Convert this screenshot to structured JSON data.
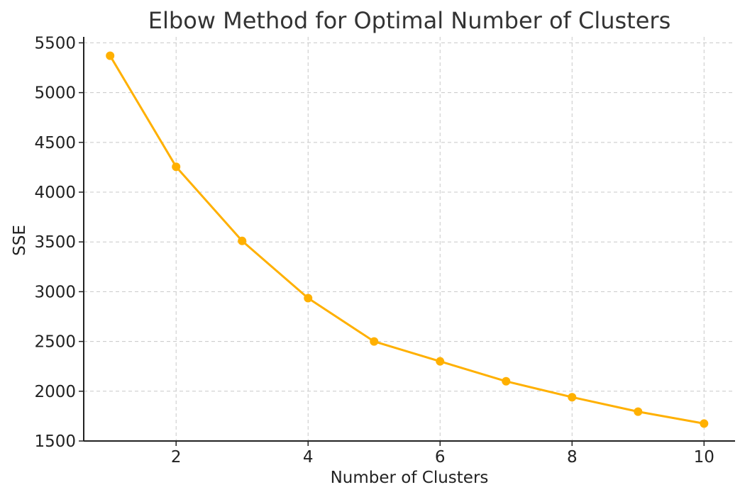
{
  "chart_data": {
    "type": "line",
    "title": "Elbow Method for Optimal Number of Clusters",
    "xlabel": "Number of Clusters",
    "ylabel": "SSE",
    "x": [
      1,
      2,
      3,
      4,
      5,
      6,
      7,
      8,
      9,
      10
    ],
    "series": [
      {
        "values": [
          5370,
          4255,
          3510,
          2935,
          2500,
          2300,
          2100,
          1940,
          1795,
          1675
        ]
      }
    ],
    "xlim": [
      0.6,
      10.47
    ],
    "ylim": [
      1500,
      5560
    ],
    "xticks": [
      2,
      4,
      6,
      8,
      10
    ],
    "yticks": [
      1500,
      2000,
      2500,
      3000,
      3500,
      4000,
      4500,
      5000,
      5500
    ],
    "grid": true,
    "marker": "circle",
    "color": "#FFB000"
  }
}
